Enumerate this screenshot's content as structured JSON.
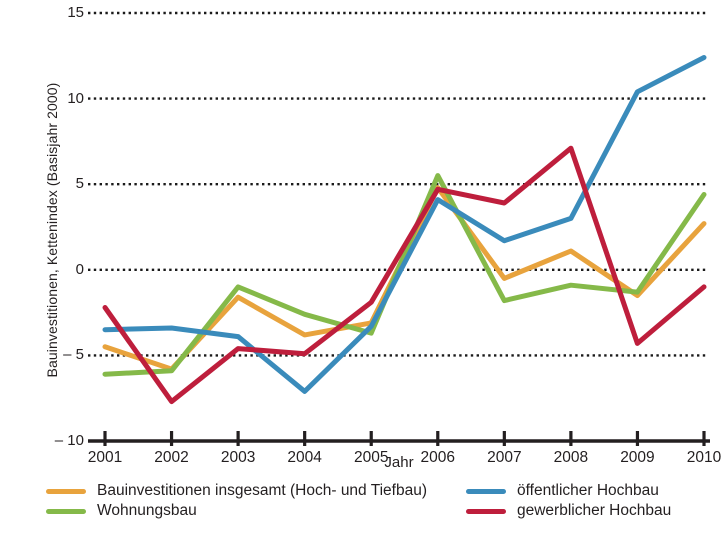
{
  "text_color": "#231F20",
  "chart_data": {
    "type": "line",
    "title": "",
    "categories": [
      "2001",
      "2002",
      "2003",
      "2004",
      "2005",
      "2006",
      "2007",
      "2008",
      "2009",
      "2010"
    ],
    "xlabel": "Jahr",
    "ylabel": "Bauinvestitionen, Kettenindex (Basisjahr 2000)",
    "ylim": [
      -10,
      15
    ],
    "y_ticks": [
      {
        "value": 15,
        "label": "15"
      },
      {
        "value": 10,
        "label": "10"
      },
      {
        "value": 5,
        "label": "5"
      },
      {
        "value": 0,
        "label": "0"
      },
      {
        "value": -5,
        "label": "– 5"
      },
      {
        "value": -10,
        "label": "– 10"
      }
    ],
    "gridlines": {
      "style": "dotted",
      "values": [
        15,
        10,
        5,
        0,
        -5
      ]
    },
    "legend_position": "bottom, two columns",
    "series": [
      {
        "name": "Bauinvestitionen insgesamt (Hoch- und Tiefbau)",
        "color": "#E8A33D",
        "legend_column": 1,
        "values": [
          -4.5,
          -5.8,
          -1.6,
          -3.8,
          -3.1,
          4.8,
          -0.5,
          1.1,
          -1.5,
          2.7
        ]
      },
      {
        "name": "Wohnungsbau",
        "color": "#85B949",
        "legend_column": 1,
        "values": [
          -6.1,
          -5.9,
          -1.0,
          -2.6,
          -3.7,
          5.5,
          -1.8,
          -0.9,
          -1.3,
          4.4
        ]
      },
      {
        "name": "öffentlicher Hochbau",
        "color": "#3A8BBB",
        "legend_column": 2,
        "values": [
          -3.5,
          -3.4,
          -3.9,
          -7.1,
          -3.3,
          4.1,
          1.7,
          3.0,
          10.4,
          12.4
        ]
      },
      {
        "name": "gewerblicher Hochbau",
        "color": "#BE1E3C",
        "legend_column": 2,
        "values": [
          -2.2,
          -7.7,
          -4.6,
          -4.9,
          -1.9,
          4.7,
          3.9,
          7.1,
          -4.3,
          -1.0
        ]
      }
    ]
  }
}
